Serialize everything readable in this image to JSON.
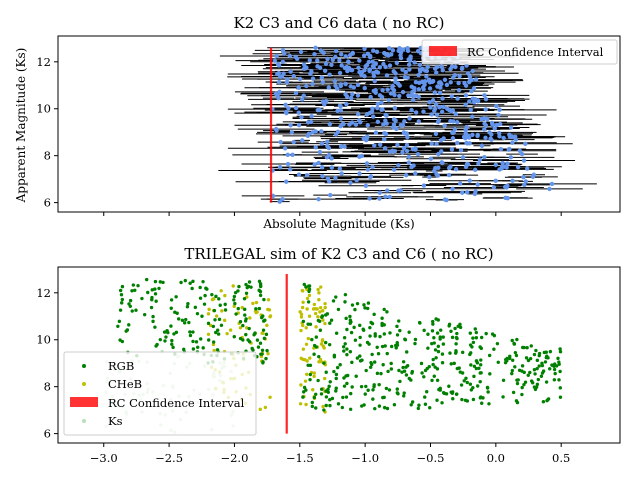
{
  "chart_data": [
    {
      "type": "scatter",
      "title": "K2 C3 and C6 data ( no RC)",
      "xlabel": "Absolute Magnitude (Ks)",
      "ylabel": "Apparent Magnitude (Ks)",
      "xlim": [
        -3.35,
        0.95
      ],
      "ylim": [
        5.6,
        13.1
      ],
      "yticks": [
        6,
        8,
        10,
        12
      ],
      "xtick_labels_visible": false,
      "grid": false,
      "legend_placement": "upper right",
      "colors": {
        "points": "#6495ed",
        "errorbars": "#000000",
        "rc": "#ff0000"
      },
      "series": [
        {
          "name": "",
          "kind": "errorbar_points",
          "count": 600,
          "x_range": [
            -1.72,
            0.6
          ],
          "y_range": [
            6.0,
            12.6
          ],
          "xerr_range": [
            0.05,
            0.45
          ]
        }
      ],
      "rc_interval": {
        "label": "RC Confidence Interval",
        "x": -1.72,
        "y_range": [
          6.0,
          12.6
        ]
      }
    },
    {
      "type": "scatter",
      "title": "TRILEGAL sim of K2 C3 and C6 ( no RC)",
      "xlabel": "",
      "ylabel": "",
      "xlim": [
        -3.35,
        0.95
      ],
      "ylim": [
        5.6,
        13.1
      ],
      "xticks": [
        -3.0,
        -2.5,
        -2.0,
        -1.5,
        -1.0,
        -0.5,
        0.0,
        0.5
      ],
      "xtick_labels": [
        "−3.0",
        "−2.5",
        "−2.0",
        "−1.5",
        "−1.0",
        "−0.5",
        "0.0",
        "0.5"
      ],
      "yticks": [
        6,
        8,
        10,
        12
      ],
      "grid": false,
      "legend_placement": "lower left",
      "colors": {
        "RGB": "#008000",
        "CHeB": "#bfbf00",
        "Ks": "#b8e0b8",
        "rc": "#ff0000"
      },
      "series": [
        {
          "name": "RGB",
          "count": 620,
          "regions": [
            {
              "x_range": [
                -2.9,
                -1.75
              ],
              "y_range": [
                9.0,
                12.6
              ]
            },
            {
              "x_range": [
                -1.48,
                0.5
              ],
              "y_range": [
                6.8,
                12.4
              ]
            }
          ]
        },
        {
          "name": "CHeB",
          "count": 150,
          "regions": [
            {
              "x_range": [
                -2.2,
                -1.72
              ],
              "y_range": [
                7.0,
                12.3
              ]
            },
            {
              "x_range": [
                -1.5,
                -1.3
              ],
              "y_range": [
                6.8,
                12.3
              ]
            }
          ]
        },
        {
          "name": "Ks",
          "count": 80,
          "regions": [
            {
              "x_range": [
                -3.0,
                -2.0
              ],
              "y_range": [
                6.0,
                9.5
              ]
            }
          ]
        }
      ],
      "rc_interval": {
        "label": "RC Confidence Interval",
        "x": -1.6,
        "y_range": [
          6.0,
          12.8
        ]
      },
      "legend_entries": [
        "RGB",
        "CHeB",
        "RC Confidence Interval",
        "Ks"
      ]
    }
  ]
}
